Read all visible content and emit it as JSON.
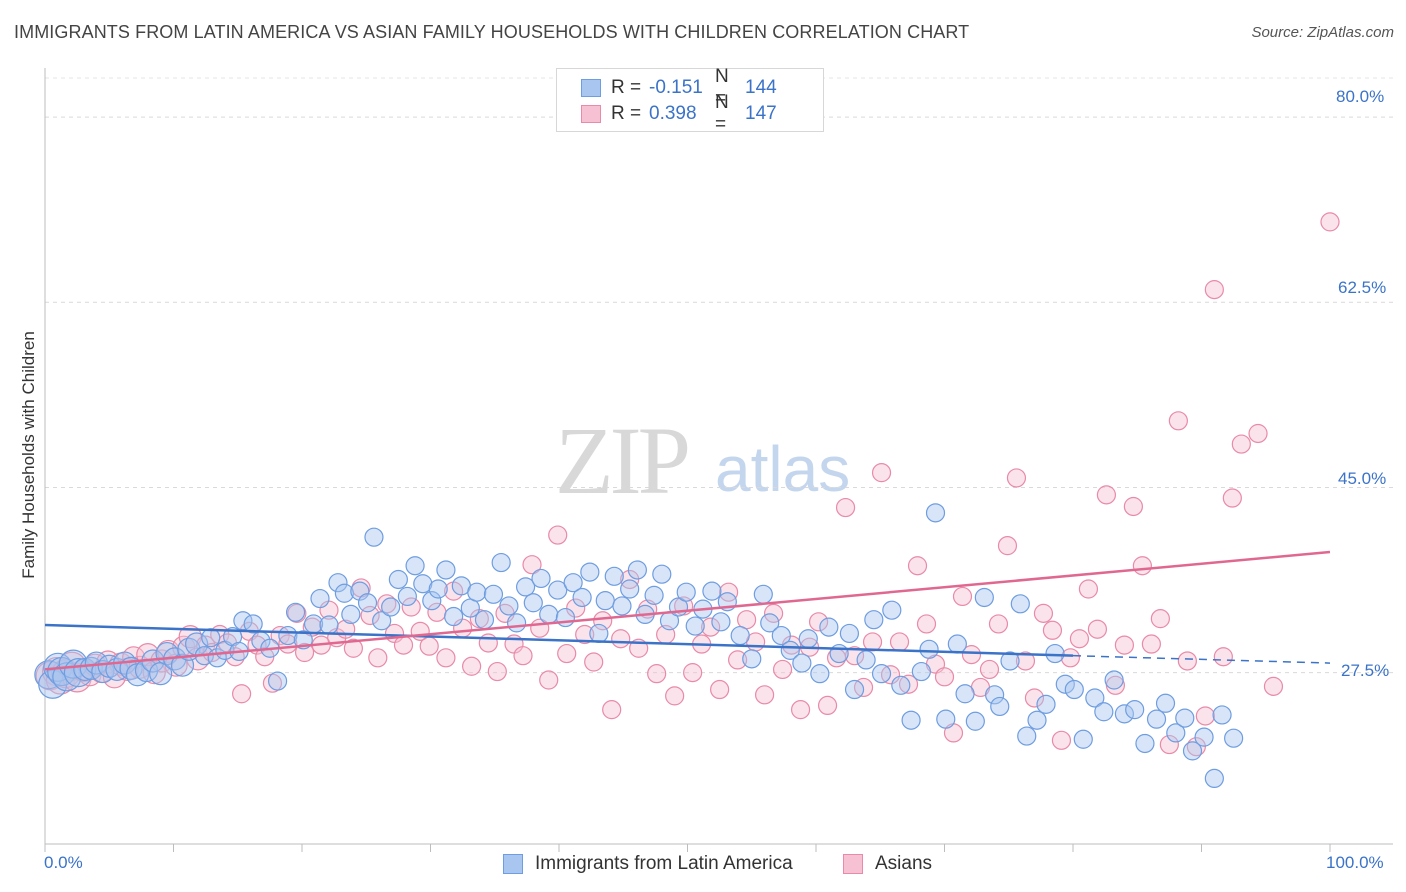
{
  "header": {
    "title": "IMMIGRANTS FROM LATIN AMERICA VS ASIAN FAMILY HOUSEHOLDS WITH CHILDREN CORRELATION CHART",
    "source": "Source: ZipAtlas.com"
  },
  "watermark": {
    "zip": "ZIP",
    "atlas": "atlas"
  },
  "legend_top": {
    "rows": [
      {
        "r_label": "R =",
        "r_value": "-0.151",
        "n_label": "N =",
        "n_value": "144",
        "color": "#a9c6f0",
        "border": "#6e9de0"
      },
      {
        "r_label": "R =",
        "r_value": "0.398",
        "n_label": "N =",
        "n_value": "147",
        "color": "#f6c1d2",
        "border": "#e88aa8"
      }
    ]
  },
  "legend_bottom": {
    "items": [
      {
        "label": "Immigrants from Latin America",
        "color": "#a9c6f0",
        "border": "#6e9de0"
      },
      {
        "label": "Asians",
        "color": "#f6c1d2",
        "border": "#e88aa8"
      }
    ]
  },
  "chart_data": {
    "type": "scatter",
    "title": "IMMIGRANTS FROM LATIN AMERICA VS ASIAN FAMILY HOUSEHOLDS WITH CHILDREN CORRELATION CHART",
    "xlabel": "",
    "ylabel": "Family Households with Children",
    "xlim": [
      0,
      100
    ],
    "ylim": [
      11.3,
      83.7
    ],
    "x_tick_labels": [
      "0.0%",
      "100.0%"
    ],
    "y_ticks": [
      27.5,
      45.0,
      62.5,
      80.0
    ],
    "y_tick_labels": [
      "27.5%",
      "45.0%",
      "62.5%",
      "80.0%"
    ],
    "grid": "horizontal dashed",
    "legend_position": "top-center and bottom",
    "colors": {
      "blue": "#3b73c8",
      "pink": "#e06890",
      "blue_fill": "#a9c6f0",
      "pink_fill": "#f6c1d2"
    },
    "series": [
      {
        "name": "Immigrants from Latin America",
        "r": -0.151,
        "n": 144,
        "trend": {
          "x0": 0,
          "y0": 32.0,
          "x1": 80,
          "y1": 29.1,
          "dashed_to_x": 100,
          "dashed_to_y": 28.4
        },
        "points": [
          [
            0.3,
            27.3
          ],
          [
            0.6,
            26.4
          ],
          [
            1.0,
            28.0
          ],
          [
            1.3,
            27.6
          ],
          [
            1.7,
            27.1
          ],
          [
            2.2,
            28.3
          ],
          [
            2.6,
            27.5
          ],
          [
            3.1,
            27.8
          ],
          [
            3.6,
            27.9
          ],
          [
            4.0,
            28.4
          ],
          [
            4.5,
            27.6
          ],
          [
            5.0,
            28.1
          ],
          [
            5.6,
            27.8
          ],
          [
            6.2,
            28.4
          ],
          [
            6.7,
            27.9
          ],
          [
            7.2,
            27.3
          ],
          [
            7.9,
            27.7
          ],
          [
            8.4,
            28.6
          ],
          [
            9.0,
            27.4
          ],
          [
            9.5,
            29.3
          ],
          [
            10.1,
            28.8
          ],
          [
            10.7,
            28.2
          ],
          [
            11.2,
            29.7
          ],
          [
            11.8,
            30.2
          ],
          [
            12.4,
            29.1
          ],
          [
            12.9,
            30.8
          ],
          [
            13.4,
            28.9
          ],
          [
            14.0,
            29.6
          ],
          [
            14.6,
            30.9
          ],
          [
            15.1,
            29.5
          ],
          [
            15.4,
            32.4
          ],
          [
            16.2,
            32.1
          ],
          [
            16.8,
            30.5
          ],
          [
            17.5,
            29.8
          ],
          [
            18.1,
            26.7
          ],
          [
            18.9,
            31.0
          ],
          [
            19.5,
            33.2
          ],
          [
            20.1,
            30.6
          ],
          [
            20.9,
            32.1
          ],
          [
            21.4,
            34.5
          ],
          [
            22.1,
            32.0
          ],
          [
            22.8,
            36.0
          ],
          [
            23.3,
            35.0
          ],
          [
            23.8,
            33.0
          ],
          [
            24.5,
            35.2
          ],
          [
            25.1,
            34.1
          ],
          [
            25.6,
            40.3
          ],
          [
            26.2,
            32.4
          ],
          [
            26.9,
            33.7
          ],
          [
            27.5,
            36.3
          ],
          [
            28.2,
            34.7
          ],
          [
            28.8,
            37.6
          ],
          [
            29.4,
            35.9
          ],
          [
            30.1,
            34.3
          ],
          [
            30.6,
            35.4
          ],
          [
            31.2,
            37.2
          ],
          [
            31.8,
            32.8
          ],
          [
            32.4,
            35.7
          ],
          [
            33.1,
            33.6
          ],
          [
            33.6,
            35.1
          ],
          [
            34.2,
            32.5
          ],
          [
            34.9,
            34.9
          ],
          [
            35.5,
            37.9
          ],
          [
            36.1,
            33.8
          ],
          [
            36.7,
            32.2
          ],
          [
            37.4,
            35.6
          ],
          [
            38.0,
            34.1
          ],
          [
            38.6,
            36.4
          ],
          [
            39.2,
            33.0
          ],
          [
            39.9,
            35.3
          ],
          [
            40.5,
            32.7
          ],
          [
            41.1,
            36.0
          ],
          [
            41.8,
            34.6
          ],
          [
            42.4,
            37.0
          ],
          [
            43.1,
            31.2
          ],
          [
            43.6,
            34.3
          ],
          [
            44.3,
            36.6
          ],
          [
            44.9,
            33.8
          ],
          [
            45.5,
            35.4
          ],
          [
            46.1,
            37.2
          ],
          [
            46.7,
            33.0
          ],
          [
            47.4,
            34.8
          ],
          [
            48.0,
            36.8
          ],
          [
            48.6,
            32.4
          ],
          [
            49.3,
            33.7
          ],
          [
            49.9,
            35.1
          ],
          [
            50.6,
            31.9
          ],
          [
            51.2,
            33.5
          ],
          [
            51.9,
            35.2
          ],
          [
            52.6,
            32.3
          ],
          [
            53.1,
            34.2
          ],
          [
            54.1,
            31.0
          ],
          [
            55.0,
            28.8
          ],
          [
            55.9,
            34.9
          ],
          [
            56.4,
            32.2
          ],
          [
            57.3,
            31.0
          ],
          [
            58.0,
            29.6
          ],
          [
            58.9,
            28.4
          ],
          [
            59.4,
            30.7
          ],
          [
            60.3,
            27.4
          ],
          [
            61.0,
            31.8
          ],
          [
            61.8,
            29.3
          ],
          [
            62.6,
            31.2
          ],
          [
            63.0,
            25.9
          ],
          [
            63.9,
            28.7
          ],
          [
            64.5,
            32.5
          ],
          [
            65.1,
            27.4
          ],
          [
            65.9,
            33.4
          ],
          [
            66.6,
            26.3
          ],
          [
            67.4,
            23.0
          ],
          [
            68.2,
            27.6
          ],
          [
            68.8,
            29.7
          ],
          [
            69.3,
            42.6
          ],
          [
            70.1,
            23.1
          ],
          [
            71.0,
            30.2
          ],
          [
            71.6,
            25.5
          ],
          [
            72.4,
            22.9
          ],
          [
            73.1,
            34.6
          ],
          [
            73.9,
            25.4
          ],
          [
            74.3,
            24.3
          ],
          [
            75.1,
            28.6
          ],
          [
            75.9,
            34.0
          ],
          [
            76.4,
            21.5
          ],
          [
            77.2,
            23.0
          ],
          [
            77.9,
            24.5
          ],
          [
            78.6,
            29.3
          ],
          [
            79.4,
            26.4
          ],
          [
            80.1,
            25.9
          ],
          [
            80.8,
            21.2
          ],
          [
            81.7,
            25.1
          ],
          [
            82.4,
            23.8
          ],
          [
            83.2,
            26.8
          ],
          [
            84.0,
            23.6
          ],
          [
            84.8,
            24.0
          ],
          [
            85.6,
            20.8
          ],
          [
            86.5,
            23.1
          ],
          [
            87.2,
            24.6
          ],
          [
            88.0,
            21.8
          ],
          [
            88.7,
            23.2
          ],
          [
            89.3,
            20.1
          ],
          [
            90.2,
            21.4
          ],
          [
            91.0,
            17.5
          ],
          [
            91.6,
            23.5
          ],
          [
            92.5,
            21.3
          ]
        ]
      },
      {
        "name": "Asians",
        "r": 0.398,
        "n": 147,
        "trend": {
          "x0": 0,
          "y0": 27.8,
          "x1": 100,
          "y1": 38.9
        },
        "points": [
          [
            0.4,
            27.2
          ],
          [
            0.9,
            27.6
          ],
          [
            1.2,
            26.8
          ],
          [
            1.6,
            27.4
          ],
          [
            2.1,
            28.1
          ],
          [
            2.5,
            27.0
          ],
          [
            3.0,
            27.7
          ],
          [
            3.5,
            27.3
          ],
          [
            3.9,
            28.2
          ],
          [
            4.4,
            27.6
          ],
          [
            4.9,
            28.5
          ],
          [
            5.4,
            27.1
          ],
          [
            5.9,
            28.3
          ],
          [
            6.4,
            27.8
          ],
          [
            6.9,
            28.9
          ],
          [
            7.4,
            28.0
          ],
          [
            8.0,
            29.2
          ],
          [
            8.5,
            27.5
          ],
          [
            9.1,
            28.6
          ],
          [
            9.6,
            29.5
          ],
          [
            10.2,
            28.2
          ],
          [
            10.8,
            29.9
          ],
          [
            11.3,
            30.9
          ],
          [
            11.9,
            28.8
          ],
          [
            12.5,
            30.1
          ],
          [
            13.0,
            29.4
          ],
          [
            13.6,
            31.1
          ],
          [
            14.2,
            30.3
          ],
          [
            14.8,
            29.0
          ],
          [
            15.3,
            25.5
          ],
          [
            15.9,
            31.4
          ],
          [
            16.5,
            30.1
          ],
          [
            17.1,
            29.0
          ],
          [
            17.7,
            26.5
          ],
          [
            18.3,
            31.0
          ],
          [
            18.9,
            30.2
          ],
          [
            19.6,
            33.1
          ],
          [
            20.2,
            29.4
          ],
          [
            20.8,
            31.8
          ],
          [
            21.5,
            30.1
          ],
          [
            22.1,
            33.4
          ],
          [
            22.7,
            30.8
          ],
          [
            23.4,
            31.6
          ],
          [
            24.0,
            29.8
          ],
          [
            24.6,
            35.5
          ],
          [
            25.3,
            32.9
          ],
          [
            25.9,
            28.9
          ],
          [
            26.6,
            34.0
          ],
          [
            27.2,
            31.2
          ],
          [
            27.9,
            30.1
          ],
          [
            28.5,
            33.7
          ],
          [
            29.2,
            31.4
          ],
          [
            29.9,
            30.0
          ],
          [
            30.5,
            33.2
          ],
          [
            31.2,
            28.9
          ],
          [
            31.8,
            35.2
          ],
          [
            32.5,
            31.7
          ],
          [
            33.2,
            28.1
          ],
          [
            33.8,
            32.6
          ],
          [
            34.5,
            30.3
          ],
          [
            35.2,
            27.6
          ],
          [
            35.8,
            33.1
          ],
          [
            36.5,
            30.2
          ],
          [
            37.2,
            29.1
          ],
          [
            37.9,
            37.7
          ],
          [
            38.5,
            31.7
          ],
          [
            39.2,
            26.8
          ],
          [
            39.9,
            40.5
          ],
          [
            40.6,
            29.3
          ],
          [
            41.3,
            33.6
          ],
          [
            42.0,
            31.1
          ],
          [
            42.7,
            28.5
          ],
          [
            43.4,
            32.4
          ],
          [
            44.1,
            24.0
          ],
          [
            44.8,
            30.7
          ],
          [
            45.5,
            36.3
          ],
          [
            46.2,
            29.8
          ],
          [
            46.9,
            33.5
          ],
          [
            47.6,
            27.4
          ],
          [
            48.3,
            31.1
          ],
          [
            49.0,
            25.3
          ],
          [
            49.7,
            33.8
          ],
          [
            50.4,
            27.5
          ],
          [
            51.1,
            30.2
          ],
          [
            51.8,
            31.8
          ],
          [
            52.5,
            25.9
          ],
          [
            53.2,
            35.1
          ],
          [
            53.9,
            28.7
          ],
          [
            54.6,
            32.5
          ],
          [
            55.3,
            30.4
          ],
          [
            56.0,
            25.4
          ],
          [
            56.7,
            33.1
          ],
          [
            57.4,
            27.8
          ],
          [
            58.1,
            30.1
          ],
          [
            58.8,
            24.0
          ],
          [
            59.5,
            29.9
          ],
          [
            60.2,
            32.3
          ],
          [
            60.9,
            24.4
          ],
          [
            61.6,
            28.9
          ],
          [
            62.3,
            43.1
          ],
          [
            63.0,
            29.1
          ],
          [
            63.7,
            26.1
          ],
          [
            64.4,
            30.4
          ],
          [
            65.1,
            46.4
          ],
          [
            65.8,
            27.3
          ],
          [
            66.5,
            30.4
          ],
          [
            67.2,
            26.4
          ],
          [
            67.9,
            37.6
          ],
          [
            68.6,
            32.1
          ],
          [
            69.3,
            28.3
          ],
          [
            70.0,
            27.1
          ],
          [
            70.7,
            21.8
          ],
          [
            71.4,
            34.7
          ],
          [
            72.1,
            29.2
          ],
          [
            72.8,
            26.1
          ],
          [
            73.5,
            27.8
          ],
          [
            74.2,
            32.1
          ],
          [
            74.9,
            39.5
          ],
          [
            75.6,
            45.9
          ],
          [
            76.3,
            28.6
          ],
          [
            77.0,
            25.1
          ],
          [
            77.7,
            33.1
          ],
          [
            78.4,
            31.5
          ],
          [
            79.1,
            21.1
          ],
          [
            79.8,
            28.9
          ],
          [
            80.5,
            30.7
          ],
          [
            81.2,
            35.4
          ],
          [
            81.9,
            31.6
          ],
          [
            82.6,
            44.3
          ],
          [
            83.3,
            26.3
          ],
          [
            84.0,
            30.1
          ],
          [
            84.7,
            43.2
          ],
          [
            85.4,
            37.6
          ],
          [
            86.1,
            30.2
          ],
          [
            86.8,
            32.6
          ],
          [
            87.5,
            20.7
          ],
          [
            88.2,
            51.3
          ],
          [
            88.9,
            28.6
          ],
          [
            89.6,
            20.5
          ],
          [
            90.3,
            23.4
          ],
          [
            91.0,
            63.7
          ],
          [
            91.7,
            29.0
          ],
          [
            92.4,
            44.0
          ],
          [
            93.1,
            49.1
          ],
          [
            94.4,
            50.1
          ],
          [
            95.6,
            26.2
          ],
          [
            100.0,
            70.1
          ]
        ]
      }
    ]
  }
}
